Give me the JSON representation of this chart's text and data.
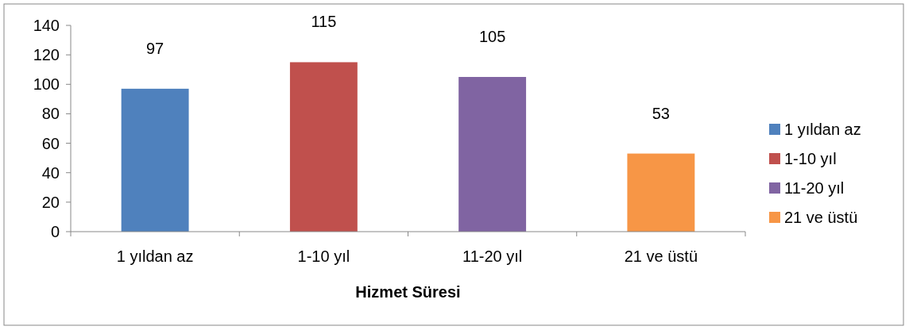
{
  "chart_data": {
    "type": "bar",
    "xlabel": "Hizmet Süresi",
    "categories": [
      "1 yıldan az",
      "1-10 yıl",
      "11-20 yıl",
      "21 ve üstü"
    ],
    "series": [
      {
        "name": "1 yıldan az",
        "color": "#4f81bd",
        "values": [
          97,
          null,
          null,
          null
        ]
      },
      {
        "name": "1-10 yıl",
        "color": "#c0504d",
        "values": [
          null,
          115,
          null,
          null
        ]
      },
      {
        "name": "11-20 yıl",
        "color": "#8064a2",
        "values": [
          null,
          null,
          105,
          null
        ]
      },
      {
        "name": "21 ve üstü",
        "color": "#f79646",
        "values": [
          null,
          null,
          null,
          53
        ]
      }
    ],
    "ylim": [
      0,
      140
    ],
    "yticks": [
      0,
      20,
      40,
      60,
      80,
      100,
      120,
      140
    ],
    "data_labels": true,
    "legend": "right"
  }
}
